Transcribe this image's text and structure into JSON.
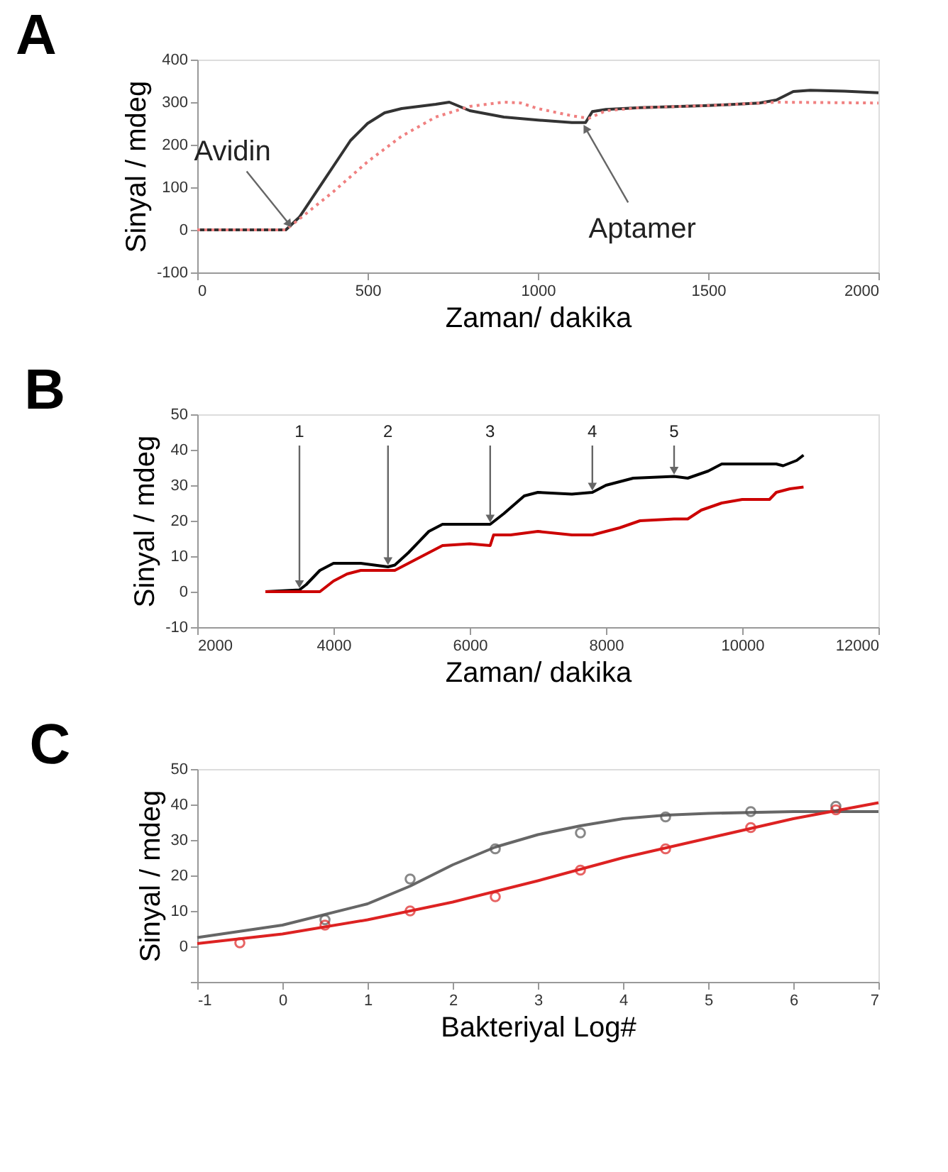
{
  "chart_data": [
    {
      "type": "line",
      "title": "A",
      "xlabel": "Zaman/ dakika",
      "ylabel": "Sinyal / mdeg",
      "xlim": [
        0,
        2000
      ],
      "ylim": [
        -100,
        400
      ],
      "xticks": [
        0,
        500,
        1000,
        1500,
        2000
      ],
      "yticks": [
        -100,
        0,
        100,
        200,
        300,
        400
      ],
      "grid": false,
      "marker": "none",
      "annotations": [
        {
          "text": "Avidin",
          "x": 270,
          "y": 0
        },
        {
          "text": "Aptamer",
          "x": 1140,
          "y": 252
        }
      ],
      "series": [
        {
          "color": "#333333",
          "line_style": "solid",
          "x": [
            0,
            260,
            300,
            400,
            450,
            500,
            550,
            600,
            700,
            740,
            800,
            900,
            1000,
            1100,
            1140,
            1160,
            1200,
            1300,
            1500,
            1650,
            1700,
            1750,
            1800,
            1900,
            2000
          ],
          "values": [
            0,
            0,
            30,
            150,
            210,
            250,
            275,
            285,
            295,
            300,
            280,
            265,
            258,
            252,
            252,
            278,
            283,
            287,
            292,
            298,
            305,
            325,
            328,
            326,
            322
          ]
        },
        {
          "color": "#f08080",
          "line_style": "dotted",
          "x": [
            0,
            260,
            400,
            500,
            600,
            700,
            800,
            900,
            950,
            1000,
            1100,
            1150,
            1200,
            1300,
            1500,
            1650,
            1700,
            2000
          ],
          "values": [
            0,
            0,
            90,
            160,
            220,
            265,
            290,
            300,
            298,
            285,
            268,
            262,
            280,
            287,
            292,
            298,
            300,
            298
          ]
        }
      ]
    },
    {
      "type": "line",
      "title": "B",
      "xlabel": "Zaman/ dakika",
      "ylabel": "Sinyal / mdeg",
      "xlim": [
        2000,
        12000
      ],
      "ylim": [
        -10,
        50
      ],
      "xticks": [
        2000,
        4000,
        6000,
        8000,
        10000,
        12000
      ],
      "yticks": [
        -10,
        0,
        10,
        20,
        30,
        40,
        50
      ],
      "grid": false,
      "marker": "none",
      "annotations": [
        {
          "text": "1",
          "x": 3500,
          "y": 0.5
        },
        {
          "text": "2",
          "x": 4800,
          "y": 7
        },
        {
          "text": "3",
          "x": 6300,
          "y": 19
        },
        {
          "text": "4",
          "x": 7800,
          "y": 28
        },
        {
          "text": "5",
          "x": 9000,
          "y": 32.5
        }
      ],
      "series": [
        {
          "color": "#000000",
          "line_style": "solid",
          "x": [
            3000,
            3500,
            3600,
            3800,
            4000,
            4400,
            4800,
            4900,
            5100,
            5400,
            5600,
            6000,
            6300,
            6500,
            6800,
            7000,
            7500,
            7800,
            8000,
            8400,
            9000,
            9200,
            9500,
            9700,
            10000,
            10500,
            10600,
            10800,
            10900
          ],
          "values": [
            0,
            0.5,
            2,
            6,
            8,
            8,
            7,
            7.5,
            11,
            17,
            19,
            19,
            19,
            22,
            27,
            28,
            27.5,
            28,
            30,
            32,
            32.5,
            32,
            34,
            36,
            36,
            36,
            35.5,
            37,
            38.5
          ]
        },
        {
          "color": "#cc0000",
          "line_style": "solid",
          "x": [
            3000,
            3800,
            4000,
            4200,
            4400,
            4900,
            5100,
            5400,
            5600,
            6000,
            6300,
            6350,
            6600,
            7000,
            7500,
            7800,
            8200,
            8500,
            9000,
            9200,
            9400,
            9700,
            10000,
            10400,
            10500,
            10700,
            10900
          ],
          "values": [
            0,
            0,
            3,
            5,
            6,
            6,
            8,
            11,
            13,
            13.5,
            13,
            16,
            16,
            17,
            16,
            16,
            18,
            20,
            20.5,
            20.5,
            23,
            25,
            26,
            26,
            28,
            29,
            29.5
          ]
        }
      ]
    },
    {
      "type": "scatter",
      "title": "C",
      "xlabel": "Bakteriyal Log#",
      "ylabel": "Sinyal / mdeg",
      "xlim": [
        -1,
        7
      ],
      "ylim": [
        -10,
        50
      ],
      "xticks": [
        -1,
        0,
        1,
        2,
        3,
        4,
        5,
        6,
        7
      ],
      "yticks": [
        {
          "value": -10,
          "label": null
        },
        0,
        10,
        20,
        30,
        40,
        50
      ],
      "grid": false,
      "series": [
        {
          "type": "line",
          "color": "#666666",
          "marker": "none",
          "x": [
            -1,
            0,
            1,
            1.5,
            2,
            2.5,
            3,
            3.5,
            4,
            4.5,
            5,
            6,
            7
          ],
          "values": [
            2.5,
            6,
            12,
            17,
            23,
            28,
            31.5,
            34,
            36,
            37,
            37.5,
            38,
            38
          ]
        },
        {
          "type": "line",
          "color": "#dd2222",
          "marker": "none",
          "x": [
            -1,
            0,
            1,
            2,
            3,
            4,
            5,
            6,
            7
          ],
          "values": [
            0.8,
            3.5,
            7.5,
            12.5,
            18.5,
            25,
            30.5,
            36,
            40.5
          ]
        },
        {
          "type": "scatter",
          "color": "#555555",
          "marker": "circle",
          "x": [
            0.5,
            1.5,
            2.5,
            3.5,
            4.5,
            5.5,
            6.5
          ],
          "values": [
            7.5,
            19,
            27.5,
            32,
            36.5,
            38,
            39.5
          ]
        },
        {
          "type": "scatter",
          "color": "#dd2222",
          "marker": "circle",
          "x": [
            -0.5,
            0.5,
            1.5,
            2.5,
            3.5,
            4.5,
            5.5,
            6.5
          ],
          "values": [
            1,
            6,
            10,
            14,
            21.5,
            27.5,
            33.5,
            38.5
          ]
        }
      ]
    }
  ]
}
